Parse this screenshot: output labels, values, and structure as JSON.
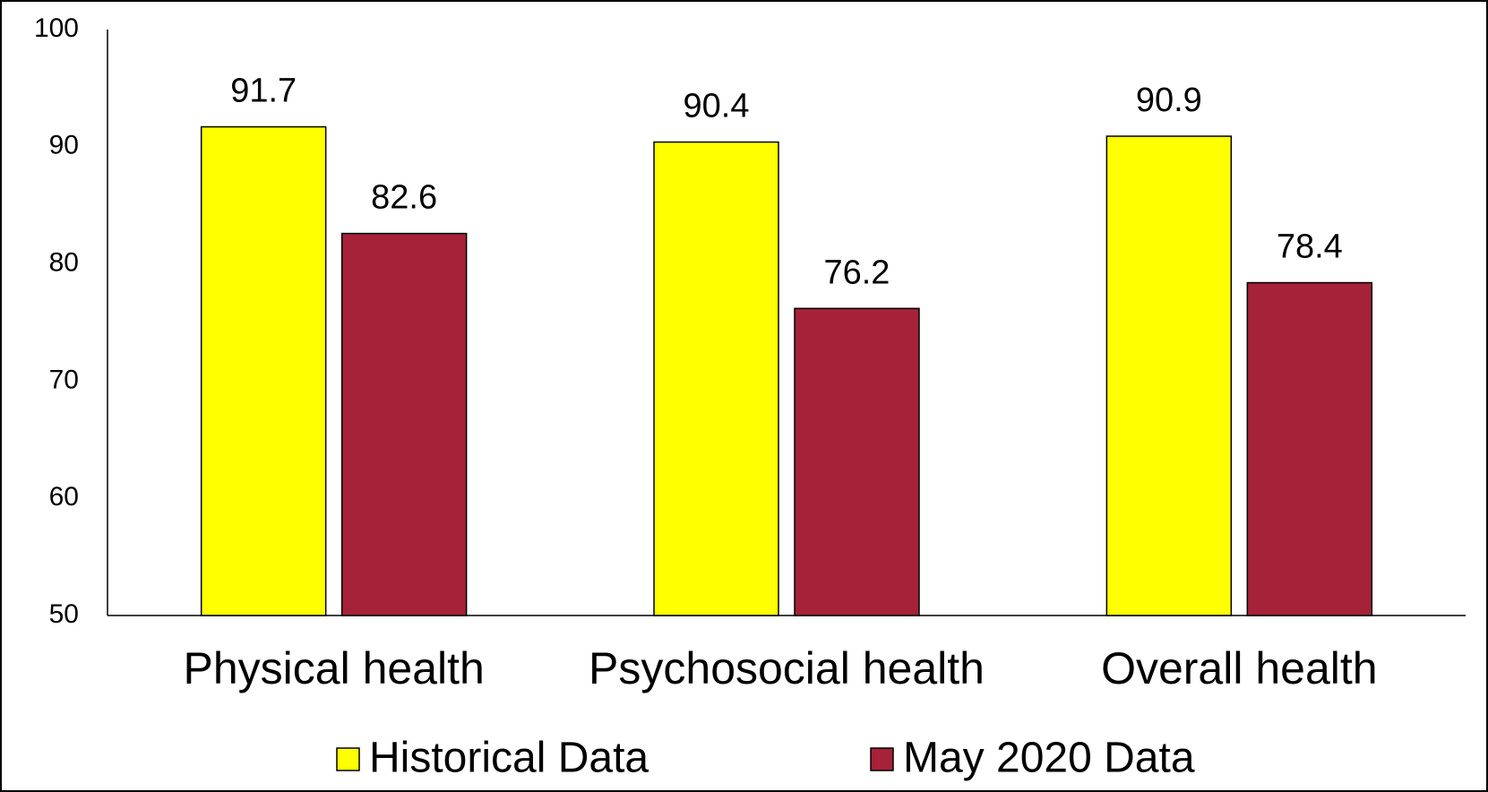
{
  "chart_data": {
    "type": "bar",
    "categories": [
      "Physical health",
      "Psychosocial health",
      "Overall health"
    ],
    "series": [
      {
        "name": "Historical Data",
        "color": "#ffff00",
        "values": [
          91.7,
          90.4,
          90.9
        ]
      },
      {
        "name": "May 2020 Data",
        "color": "#a52238",
        "values": [
          82.6,
          76.2,
          78.4
        ]
      }
    ],
    "ylim": [
      50,
      100
    ],
    "yticks": [
      50,
      60,
      70,
      80,
      90,
      100
    ],
    "grid": false,
    "legend": "bottom"
  }
}
